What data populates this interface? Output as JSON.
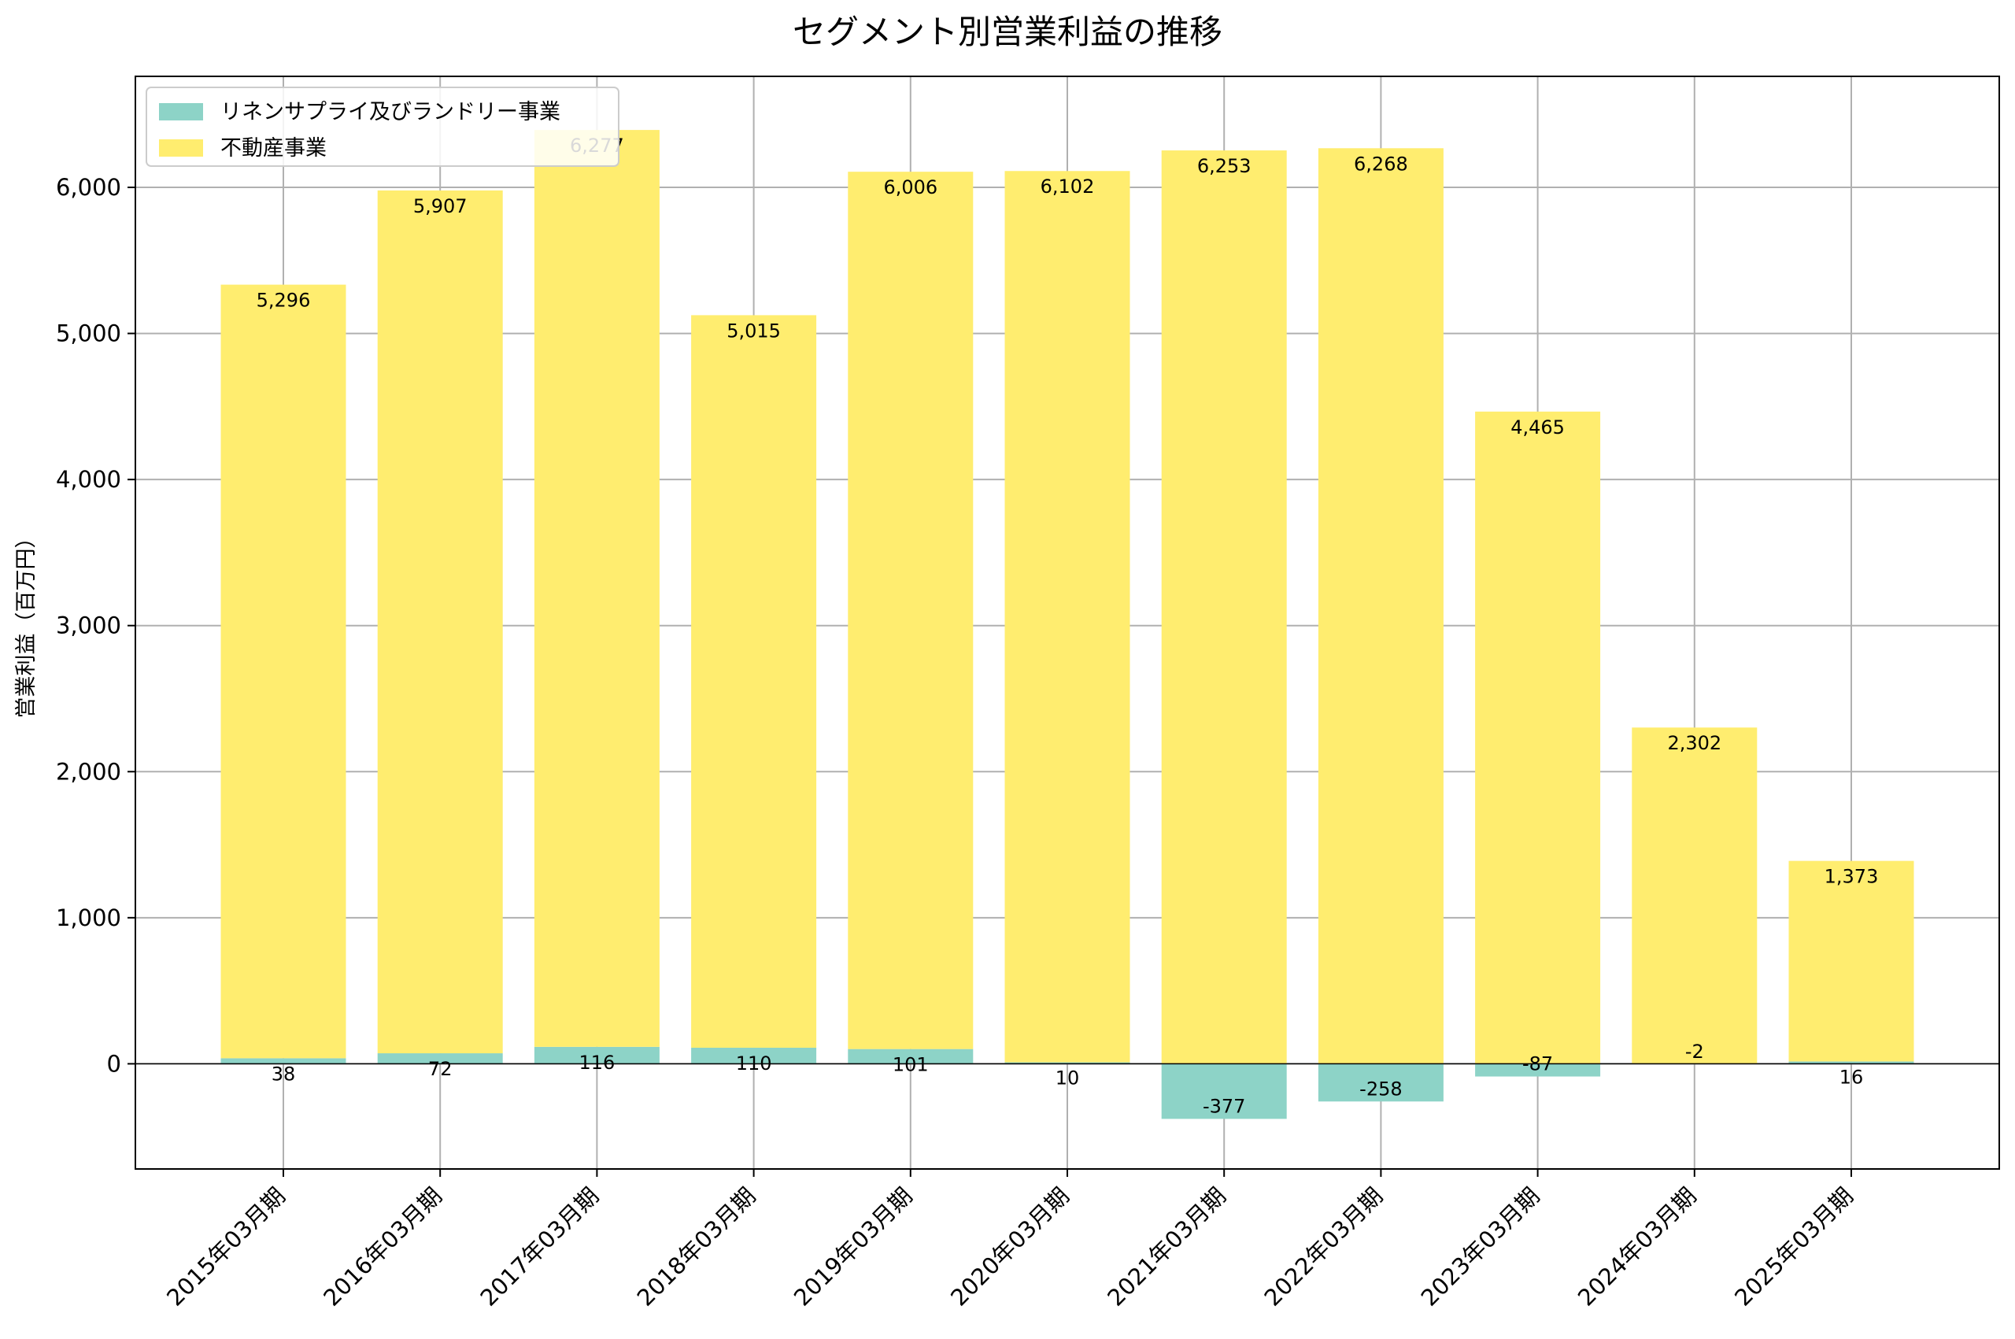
{
  "chart_data": {
    "type": "bar",
    "stacked": true,
    "title": "セグメント別営業利益の推移",
    "xlabel": "",
    "ylabel": "営業利益（百万円）",
    "ylim": [
      -720,
      6760
    ],
    "yticks": [
      0,
      1000,
      2000,
      3000,
      4000,
      5000,
      6000
    ],
    "ytick_labels": [
      "0",
      "1,000",
      "2,000",
      "3,000",
      "4,000",
      "5,000",
      "6,000"
    ],
    "grid": true,
    "legend_position": "top-left",
    "categories": [
      "2015年03月期",
      "2016年03月期",
      "2017年03月期",
      "2018年03月期",
      "2019年03月期",
      "2020年03月期",
      "2021年03月期",
      "2022年03月期",
      "2023年03月期",
      "2024年03月期",
      "2025年03月期"
    ],
    "series": [
      {
        "name": "リネンサプライ及びランドリー事業",
        "color": "#8dd3c7",
        "values": [
          38,
          72,
          116,
          110,
          101,
          10,
          -377,
          -258,
          -87,
          -2,
          16
        ],
        "labels": [
          "38",
          "72",
          "116",
          "110",
          "101",
          "10",
          "-377",
          "-258",
          "-87",
          "-2",
          "16"
        ]
      },
      {
        "name": "不動産事業",
        "color": "#ffed6f",
        "values": [
          5296,
          5907,
          6277,
          5015,
          6006,
          6102,
          6253,
          6268,
          4465,
          2302,
          1373
        ],
        "labels": [
          "5,296",
          "5,907",
          "6,277",
          "5,015",
          "6,006",
          "6,102",
          "6,253",
          "6,268",
          "4,465",
          "2,302",
          "1,373"
        ]
      }
    ]
  }
}
